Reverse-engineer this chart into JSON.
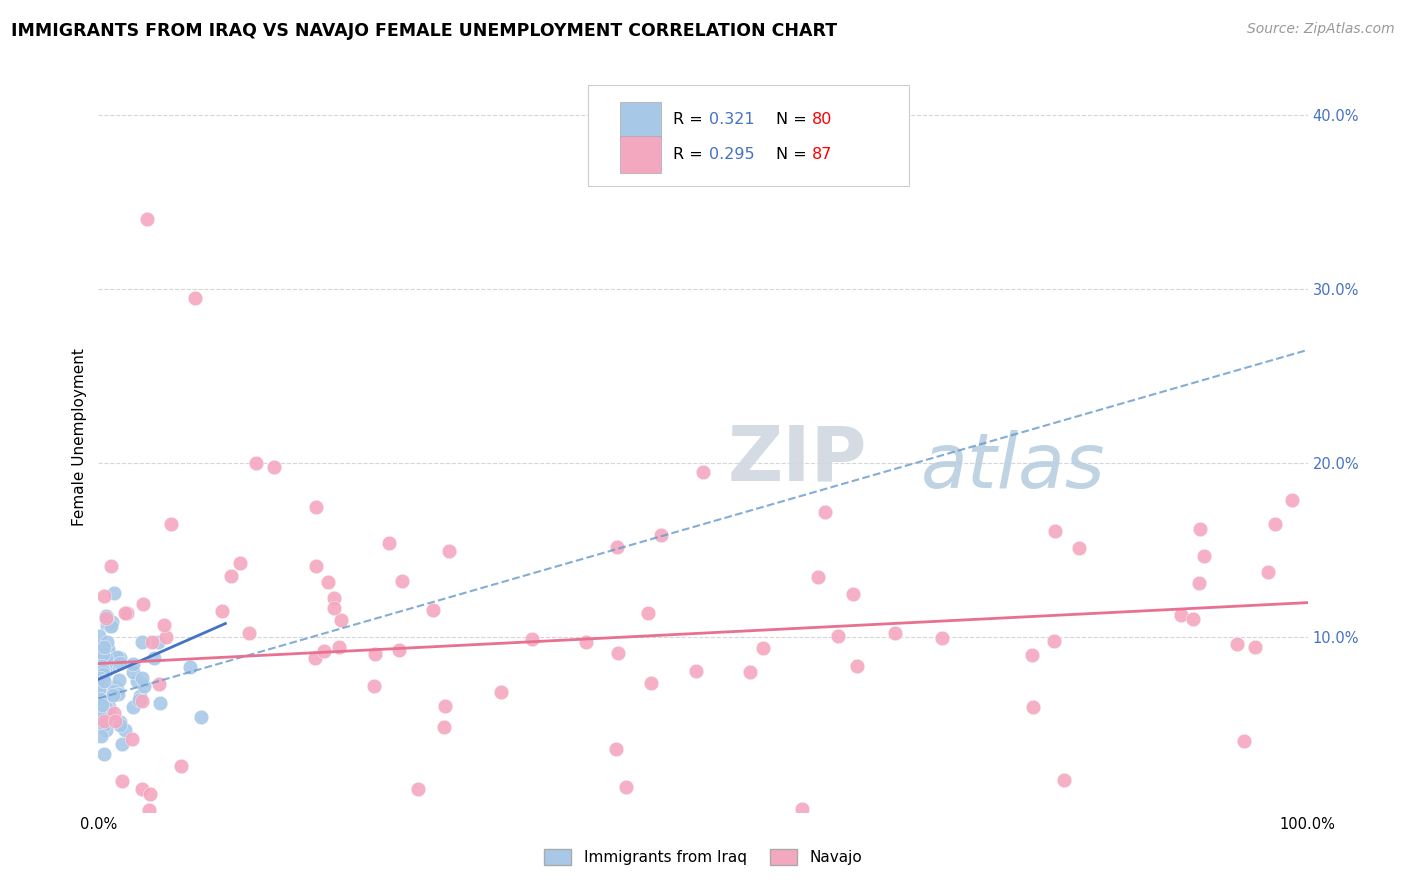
{
  "title": "IMMIGRANTS FROM IRAQ VS NAVAJO FEMALE UNEMPLOYMENT CORRELATION CHART",
  "source": "Source: ZipAtlas.com",
  "ylabel": "Female Unemployment",
  "xlim": [
    0.0,
    1.0
  ],
  "ylim": [
    0.0,
    0.43
  ],
  "color_blue": "#a8c8e8",
  "color_pink": "#f4a8c0",
  "line_blue": "#4472C4",
  "line_pink": "#E87090",
  "line_dashed_color": "#6699CC",
  "watermark_zip": "ZIP",
  "watermark_atlas": "atlas",
  "legend_label1": "Immigrants from Iraq",
  "legend_label2": "Navajo",
  "bg_color": "#ffffff",
  "grid_color": "#cccccc",
  "title_fontsize": 12.5,
  "source_fontsize": 10,
  "axis_label_fontsize": 11,
  "tick_fontsize": 10.5,
  "r_value_color": "#4472C4",
  "n_value_color": "#FF0000",
  "blue_line_x0": 0.0,
  "blue_line_x1": 0.105,
  "blue_line_y0": 0.076,
  "blue_line_y1": 0.108,
  "pink_line_x0": 0.0,
  "pink_line_x1": 1.0,
  "pink_line_y0": 0.085,
  "pink_line_y1": 0.12,
  "dashed_line_x0": 0.0,
  "dashed_line_x1": 1.0,
  "dashed_line_y0": 0.065,
  "dashed_line_y1": 0.265,
  "yticks": [
    0.1,
    0.2,
    0.3,
    0.4
  ],
  "ytick_labels": [
    "10.0%",
    "20.0%",
    "30.0%",
    "40.0%"
  ],
  "xtick_labels": [
    "0.0%",
    "100.0%"
  ],
  "xtick_positions": [
    0.0,
    1.0
  ]
}
